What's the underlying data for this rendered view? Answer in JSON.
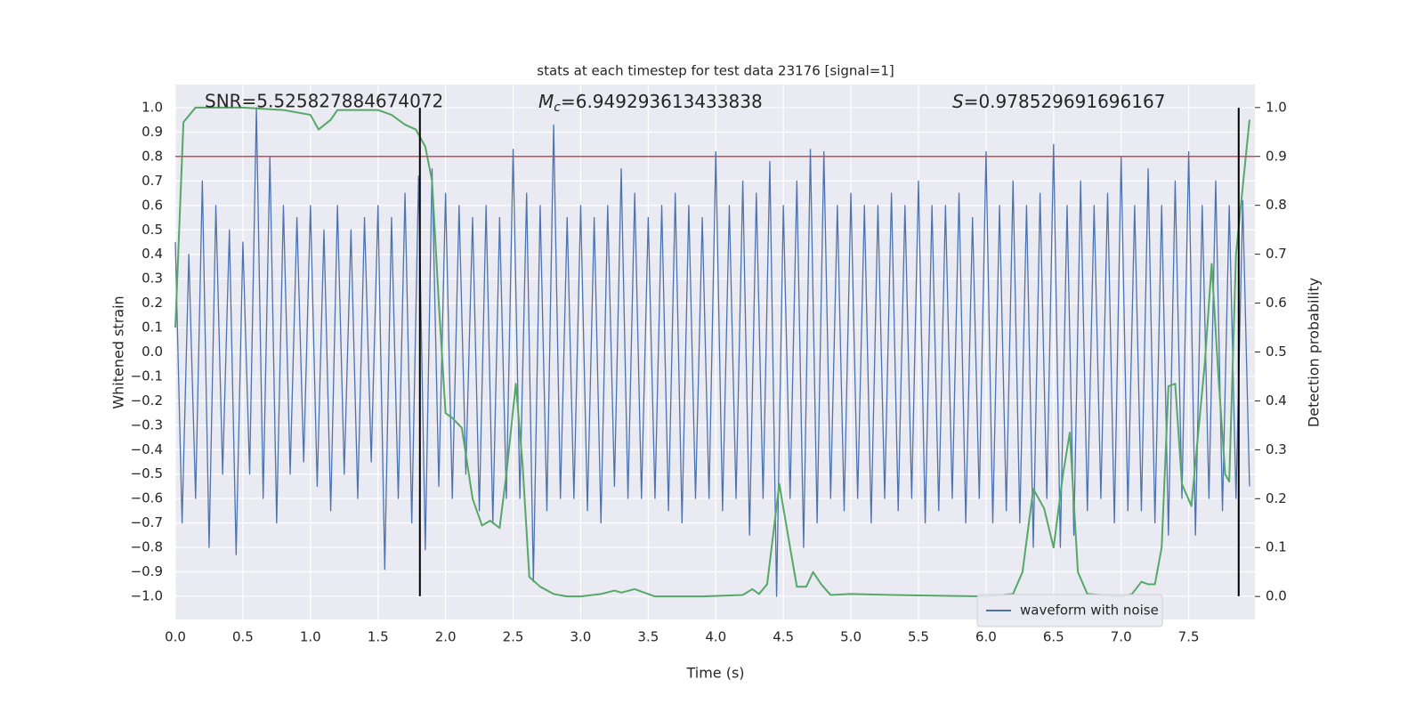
{
  "chart_data": {
    "type": "line",
    "title": "stats at each timestep for test data 23176 [signal=1]",
    "xlabel": "Time (s)",
    "ylabel": "Whitened strain",
    "y2label": "Detection probability",
    "annotations": {
      "snr": "SNR=5.525827884674072",
      "mc": {
        "symbol": "M",
        "subscript": "c",
        "text": "=6.949293613433838"
      },
      "s": {
        "symbol": "S",
        "text": "=0.978529691696167"
      }
    },
    "xlim": [
      0,
      7.99
    ],
    "ylim": [
      -1.095,
      1.095
    ],
    "y2lim": [
      -0.047,
      1.047
    ],
    "xticks": [
      {
        "value": 0,
        "label": "0.0"
      },
      {
        "value": 0.5,
        "label": "0.5"
      },
      {
        "value": 1,
        "label": "1.0"
      },
      {
        "value": 1.5,
        "label": "1.5"
      },
      {
        "value": 2,
        "label": "2.0"
      },
      {
        "value": 2.5,
        "label": "2.5"
      },
      {
        "value": 3,
        "label": "3.0"
      },
      {
        "value": 3.5,
        "label": "3.5"
      },
      {
        "value": 4,
        "label": "4.0"
      },
      {
        "value": 4.5,
        "label": "4.5"
      },
      {
        "value": 5,
        "label": "5.0"
      },
      {
        "value": 5.5,
        "label": "5.5"
      },
      {
        "value": 6,
        "label": "6.0"
      },
      {
        "value": 6.5,
        "label": "6.5"
      },
      {
        "value": 7,
        "label": "7.0"
      },
      {
        "value": 7.5,
        "label": "7.5"
      }
    ],
    "yticks": [
      {
        "value": -1,
        "label": "−1.0"
      },
      {
        "value": -0.9,
        "label": "−0.9"
      },
      {
        "value": -0.8,
        "label": "−0.8"
      },
      {
        "value": -0.7,
        "label": "−0.7"
      },
      {
        "value": -0.6,
        "label": "−0.6"
      },
      {
        "value": -0.5,
        "label": "−0.5"
      },
      {
        "value": -0.4,
        "label": "−0.4"
      },
      {
        "value": -0.3,
        "label": "−0.3"
      },
      {
        "value": -0.2,
        "label": "−0.2"
      },
      {
        "value": -0.1,
        "label": "−0.1"
      },
      {
        "value": 0,
        "label": "0.0"
      },
      {
        "value": 0.1,
        "label": "0.1"
      },
      {
        "value": 0.2,
        "label": "0.2"
      },
      {
        "value": 0.3,
        "label": "0.3"
      },
      {
        "value": 0.4,
        "label": "0.4"
      },
      {
        "value": 0.5,
        "label": "0.5"
      },
      {
        "value": 0.6,
        "label": "0.6"
      },
      {
        "value": 0.7,
        "label": "0.7"
      },
      {
        "value": 0.8,
        "label": "0.8"
      },
      {
        "value": 0.9,
        "label": "0.9"
      },
      {
        "value": 1,
        "label": "1.0"
      }
    ],
    "y2ticks": [
      {
        "value": 0,
        "label": "0.0"
      },
      {
        "value": 0.1,
        "label": "0.1"
      },
      {
        "value": 0.2,
        "label": "0.2"
      },
      {
        "value": 0.3,
        "label": "0.3"
      },
      {
        "value": 0.4,
        "label": "0.4"
      },
      {
        "value": 0.5,
        "label": "0.5"
      },
      {
        "value": 0.6,
        "label": "0.6"
      },
      {
        "value": 0.7,
        "label": "0.7"
      },
      {
        "value": 0.8,
        "label": "0.8"
      },
      {
        "value": 0.9,
        "label": "0.9"
      },
      {
        "value": 1,
        "label": "1.0"
      }
    ],
    "grid": true,
    "legend": "lower right",
    "series": [
      {
        "name": "waveform with noise",
        "color": "#4c72b0",
        "axis": "y",
        "x": [
          0,
          0.05,
          0.1,
          0.15,
          0.2,
          0.25,
          0.3,
          0.35,
          0.4,
          0.45,
          0.5,
          0.55,
          0.6,
          0.65,
          0.7,
          0.75,
          0.8,
          0.85,
          0.9,
          0.95,
          1,
          1.05,
          1.1,
          1.15,
          1.2,
          1.25,
          1.3,
          1.35,
          1.4,
          1.45,
          1.5,
          1.55,
          1.6,
          1.65,
          1.7,
          1.75,
          1.8,
          1.85,
          1.9,
          1.95,
          2,
          2.05,
          2.1,
          2.15,
          2.2,
          2.25,
          2.3,
          2.35,
          2.4,
          2.45,
          2.5,
          2.55,
          2.6,
          2.65,
          2.7,
          2.75,
          2.8,
          2.85,
          2.9,
          2.95,
          3,
          3.05,
          3.1,
          3.15,
          3.2,
          3.25,
          3.3,
          3.35,
          3.4,
          3.45,
          3.5,
          3.55,
          3.6,
          3.65,
          3.7,
          3.75,
          3.8,
          3.85,
          3.9,
          3.95,
          4,
          4.05,
          4.1,
          4.15,
          4.2,
          4.25,
          4.3,
          4.35,
          4.4,
          4.45,
          4.5,
          4.55,
          4.6,
          4.65,
          4.7,
          4.75,
          4.8,
          4.85,
          4.9,
          4.95,
          5,
          5.05,
          5.1,
          5.15,
          5.2,
          5.25,
          5.3,
          5.35,
          5.4,
          5.45,
          5.5,
          5.55,
          5.6,
          5.65,
          5.7,
          5.75,
          5.8,
          5.85,
          5.9,
          5.95,
          6,
          6.05,
          6.1,
          6.15,
          6.2,
          6.25,
          6.3,
          6.35,
          6.4,
          6.45,
          6.5,
          6.55,
          6.6,
          6.65,
          6.7,
          6.75,
          6.8,
          6.85,
          6.9,
          6.95,
          7,
          7.05,
          7.1,
          7.15,
          7.2,
          7.25,
          7.3,
          7.35,
          7.4,
          7.45,
          7.5,
          7.55,
          7.6,
          7.65,
          7.7,
          7.75,
          7.8,
          7.85,
          7.9,
          7.95
        ],
        "values": [
          0.45,
          -0.7,
          0.4,
          -0.6,
          0.7,
          -0.8,
          0.6,
          -0.5,
          0.5,
          -0.83,
          0.45,
          -0.5,
          1.0,
          -0.6,
          0.8,
          -0.7,
          0.6,
          -0.5,
          0.55,
          -0.45,
          0.6,
          -0.55,
          0.5,
          -0.65,
          0.6,
          -0.5,
          0.5,
          -0.6,
          0.55,
          -0.45,
          0.6,
          -0.89,
          0.55,
          -0.6,
          0.65,
          -0.7,
          0.72,
          -0.81,
          0.75,
          -0.55,
          0.65,
          -0.6,
          0.6,
          -0.5,
          0.55,
          -0.65,
          0.6,
          -0.7,
          0.55,
          -0.6,
          0.83,
          -0.6,
          0.65,
          -0.94,
          0.6,
          -0.65,
          0.93,
          -0.6,
          0.55,
          -0.6,
          0.6,
          -0.65,
          0.55,
          -0.7,
          0.6,
          -0.55,
          0.75,
          -0.6,
          0.65,
          -0.6,
          0.55,
          -0.6,
          0.6,
          -0.65,
          0.65,
          -0.7,
          0.6,
          -0.6,
          0.55,
          -0.6,
          0.82,
          -0.65,
          0.6,
          -0.6,
          0.7,
          -0.75,
          0.65,
          -0.6,
          0.78,
          -1.0,
          0.6,
          -0.6,
          0.7,
          -0.8,
          0.83,
          -0.7,
          0.82,
          -0.6,
          0.6,
          -0.65,
          0.65,
          -0.6,
          0.6,
          -0.7,
          0.6,
          -0.6,
          0.65,
          -0.65,
          0.6,
          -0.6,
          0.7,
          -0.7,
          0.6,
          -0.65,
          0.6,
          -0.6,
          0.65,
          -0.7,
          0.55,
          -0.6,
          0.82,
          -0.7,
          0.6,
          -0.65,
          0.7,
          -0.7,
          0.6,
          -0.8,
          0.65,
          -0.6,
          0.85,
          -0.8,
          0.6,
          -0.75,
          0.7,
          -0.65,
          0.6,
          -0.6,
          0.65,
          -0.7,
          0.8,
          -0.65,
          0.6,
          -0.65,
          0.75,
          -0.7,
          0.6,
          -0.75,
          0.7,
          -0.6,
          0.82,
          -0.75,
          0.6,
          -0.6,
          0.7,
          -0.65,
          0.6,
          -0.6,
          0.62,
          -0.55
        ]
      },
      {
        "color": "#55a868",
        "axis": "y2",
        "x": [
          0,
          0.06,
          0.15,
          0.5,
          0.8,
          1,
          1.06,
          1.15,
          1.2,
          1.5,
          1.6,
          1.7,
          1.78,
          1.85,
          1.9,
          1.95,
          2,
          2.05,
          2.12,
          2.2,
          2.27,
          2.33,
          2.4,
          2.45,
          2.52,
          2.57,
          2.62,
          2.7,
          2.8,
          2.9,
          3,
          3.15,
          3.25,
          3.3,
          3.4,
          3.55,
          3.9,
          4.2,
          4.27,
          4.32,
          4.38,
          4.47,
          4.55,
          4.6,
          4.67,
          4.72,
          4.78,
          4.85,
          5,
          5.3,
          6,
          6.2,
          6.27,
          6.35,
          6.43,
          6.5,
          6.57,
          6.62,
          6.68,
          6.75,
          7,
          7.08,
          7.15,
          7.2,
          7.25,
          7.3,
          7.35,
          7.4,
          7.45,
          7.52,
          7.62,
          7.67,
          7.72,
          7.77,
          7.8,
          7.85,
          7.95
        ],
        "values": [
          0.55,
          0.97,
          1.0,
          1.0,
          0.995,
          0.985,
          0.955,
          0.975,
          0.995,
          0.995,
          0.985,
          0.965,
          0.955,
          0.92,
          0.85,
          0.6,
          0.375,
          0.365,
          0.345,
          0.2,
          0.145,
          0.155,
          0.14,
          0.25,
          0.435,
          0.27,
          0.04,
          0.02,
          0.005,
          0,
          0,
          0.005,
          0.012,
          0.008,
          0.015,
          0,
          0,
          0.003,
          0.015,
          0.005,
          0.025,
          0.23,
          0.1,
          0.02,
          0.02,
          0.05,
          0.025,
          0.003,
          0.005,
          0.003,
          0,
          0.005,
          0.05,
          0.22,
          0.18,
          0.1,
          0.25,
          0.335,
          0.05,
          0.005,
          0,
          0.005,
          0.03,
          0.025,
          0.025,
          0.1,
          0.43,
          0.435,
          0.23,
          0.185,
          0.48,
          0.68,
          0.45,
          0.25,
          0.235,
          0.7,
          0.975
        ]
      }
    ],
    "hlines": [
      {
        "value": 0.9,
        "axis": "y2",
        "color": "#c44e52"
      }
    ],
    "vlines": [
      {
        "x": 1.81,
        "color": "#000000"
      },
      {
        "x": 7.87,
        "color": "#000000"
      }
    ]
  }
}
